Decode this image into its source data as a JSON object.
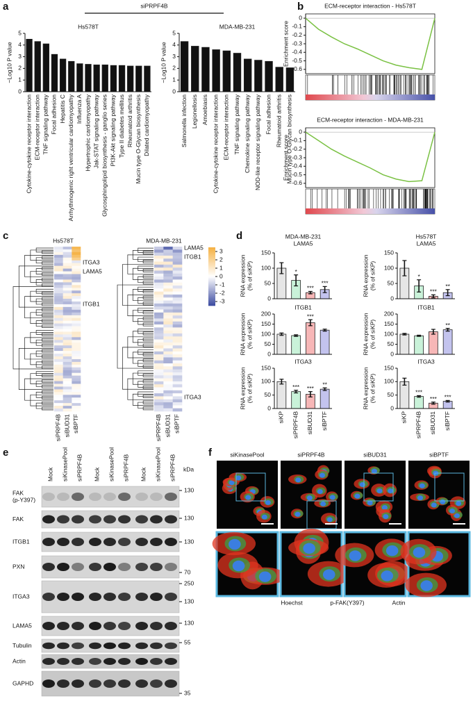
{
  "panel_labels": [
    "a",
    "b",
    "c",
    "d",
    "e",
    "f"
  ],
  "a_header": "siPRPF4B",
  "chart_data": [
    {
      "type": "bar",
      "title": "Hs578T",
      "ylabel": "−Log10 P value",
      "color": "#111111",
      "ylim": [
        0,
        5
      ],
      "yticks": [
        0,
        1,
        2,
        3,
        4,
        5
      ],
      "categories": [
        "Cytokine-cytokine receptor interaction",
        "ECM-receptor interaction",
        "TNF signaling pathway",
        "Focal adhesion",
        "Hepatitis C",
        "Arrhythmogenic right ventricular cardiomyopathy",
        "Influenza A",
        "Hypertrophic cardiomyopathy",
        "Jak-STAT signaling pathway",
        "Glycosphingolipid biosynthesis - ganglio series",
        "PI3K-Akt signaling pathway",
        "Type II diabetes mellitus",
        "Rheumatoid arthritis",
        "Mucin type O-Glycan biosynthesis",
        "Dilated cardiomyopathy"
      ],
      "values": [
        4.5,
        4.3,
        4.1,
        3.2,
        2.8,
        2.6,
        2.4,
        2.35,
        2.3,
        2.3,
        2.25,
        2.25,
        2.2,
        2.2,
        2.2
      ]
    },
    {
      "type": "bar",
      "title": "MDA-MB-231",
      "ylabel": "−Log10 P value",
      "color": "#111111",
      "ylim": [
        0,
        5
      ],
      "yticks": [
        0,
        1,
        2,
        3,
        4,
        5
      ],
      "categories": [
        "Salmonella infection",
        "Legionellosis",
        "Amoebiasis",
        "Cytokine-cytokine receptor interaction",
        "ECM-receptor interaction",
        "TNF signaling pathway",
        "Chemokine signaling pathway",
        "NOD-like receptor signaling pathway",
        "Focal adhesion",
        "Rheumatoid arthritis",
        "Mucin type O-Glycan biosynthesis"
      ],
      "values": [
        4.3,
        3.9,
        3.8,
        3.6,
        3.5,
        3.3,
        2.8,
        2.7,
        2.6,
        2.1,
        2.05
      ]
    },
    {
      "type": "line",
      "title": "ECM-receptor interaction - Hs578T",
      "ylabel": "Enrichment score",
      "color": "#7ac143",
      "xlim": [
        0,
        1
      ],
      "ylim": [
        -0.65,
        0.05
      ],
      "yticks": [
        0,
        -0.1,
        -0.2,
        -0.3,
        -0.4,
        -0.5,
        -0.6
      ],
      "x": [
        0,
        0.1,
        0.2,
        0.3,
        0.4,
        0.5,
        0.6,
        0.7,
        0.8,
        0.9,
        1
      ],
      "values": [
        0,
        -0.13,
        -0.22,
        -0.3,
        -0.36,
        -0.43,
        -0.5,
        -0.55,
        -0.58,
        -0.6,
        0
      ]
    },
    {
      "type": "line",
      "title": "ECM-receptor interaction - MDA-MB-231",
      "ylabel": "Enrichment score",
      "color": "#7ac143",
      "xlim": [
        0,
        1
      ],
      "ylim": [
        -0.65,
        0.05
      ],
      "yticks": [
        0,
        -0.1,
        -0.2,
        -0.3,
        -0.4,
        -0.5,
        -0.6
      ],
      "x": [
        0,
        0.1,
        0.2,
        0.3,
        0.4,
        0.5,
        0.6,
        0.7,
        0.8,
        0.9,
        1
      ],
      "values": [
        0,
        -0.1,
        -0.2,
        -0.28,
        -0.35,
        -0.42,
        -0.5,
        -0.55,
        -0.58,
        -0.57,
        0
      ]
    },
    {
      "type": "bar",
      "title": "MDA-MB-231",
      "subtitle": "LAMA5",
      "ylabel": [
        "RNA expression",
        "(% of siKP)"
      ],
      "colors": [
        "#e6e6e6",
        "#c9f2d9",
        "#f7b7b7",
        "#c3c3ee"
      ],
      "ylim": [
        0,
        150
      ],
      "yticks": [
        0,
        50,
        100,
        150
      ],
      "values": [
        100,
        60,
        20,
        30
      ],
      "errors": [
        18,
        18,
        4,
        10
      ],
      "annotations": [
        null,
        "*",
        "***",
        "***"
      ]
    },
    {
      "type": "bar",
      "title": "Hs578T",
      "subtitle": "LAMA5",
      "ylabel": [
        "RNA expression",
        "(% of siKP)"
      ],
      "colors": [
        "#e6e6e6",
        "#c9f2d9",
        "#f7b7b7",
        "#c3c3ee"
      ],
      "ylim": [
        0,
        150
      ],
      "yticks": [
        0,
        50,
        100,
        150
      ],
      "values": [
        100,
        42,
        8,
        20
      ],
      "errors": [
        25,
        20,
        5,
        10
      ],
      "annotations": [
        null,
        "*",
        "***",
        "**"
      ]
    },
    {
      "type": "bar",
      "title": "ITGB1",
      "ylabel": [
        "RNA expression",
        "(% of siKP)"
      ],
      "colors": [
        "#e6e6e6",
        "#c9f2d9",
        "#f7b7b7",
        "#c3c3ee"
      ],
      "ylim": [
        0,
        200
      ],
      "yticks": [
        0,
        50,
        100,
        150,
        200
      ],
      "values": [
        100,
        93,
        157,
        120
      ],
      "errors": [
        6,
        4,
        15,
        5
      ],
      "annotations": [
        null,
        null,
        "***",
        null
      ]
    },
    {
      "type": "bar",
      "title": "ITGB1",
      "ylabel": [
        "RNA expression",
        "(% of siKP)"
      ],
      "colors": [
        "#e6e6e6",
        "#c9f2d9",
        "#f7b7b7",
        "#c3c3ee"
      ],
      "ylim": [
        0,
        200
      ],
      "yticks": [
        0,
        50,
        100,
        150,
        200
      ],
      "values": [
        100,
        92,
        112,
        122
      ],
      "errors": [
        4,
        3,
        12,
        7
      ],
      "annotations": [
        null,
        null,
        null,
        "**"
      ]
    },
    {
      "type": "bar",
      "title": "ITGA3",
      "ylabel": [
        "RNA expression",
        "(% of siKP)"
      ],
      "colors": [
        "#e6e6e6",
        "#c9f2d9",
        "#f7b7b7",
        "#c3c3ee"
      ],
      "ylim": [
        0,
        150
      ],
      "yticks": [
        0,
        50,
        100,
        150
      ],
      "categories": [
        "siKP",
        "siPRPF4B",
        "siBUD31",
        "siBPTF"
      ],
      "values": [
        100,
        63,
        53,
        72
      ],
      "errors": [
        9,
        5,
        10,
        5
      ],
      "annotations": [
        null,
        "***",
        "***",
        "**"
      ]
    },
    {
      "type": "bar",
      "title": "ITGA3",
      "ylabel": [
        "RNA expression",
        "(% of siKP)"
      ],
      "colors": [
        "#e6e6e6",
        "#c9f2d9",
        "#f7b7b7",
        "#c3c3ee"
      ],
      "ylim": [
        0,
        150
      ],
      "yticks": [
        0,
        50,
        100,
        150
      ],
      "categories": [
        "siKP",
        "siPRPF4B",
        "siBUD31",
        "siBPTF"
      ],
      "values": [
        100,
        45,
        20,
        27
      ],
      "errors": [
        13,
        3,
        4,
        3
      ],
      "annotations": [
        null,
        "***",
        "***",
        "***"
      ]
    }
  ],
  "heatmap": {
    "panels": [
      {
        "title": "Hs578T",
        "genes": [
          "ITGA3",
          "LAMA5",
          "ITGB1"
        ],
        "columns": [
          "siPRPF4B",
          "siBUD31",
          "siBPTF"
        ]
      },
      {
        "title": "MDA-MB-231",
        "genes": [
          "LAMA5",
          "ITGB1",
          "ITGA3"
        ],
        "columns": [
          "siPRPF4B",
          "siBUD31",
          "siBPTF"
        ]
      }
    ],
    "colorbar": {
      "lim": [
        -3.5,
        3.5
      ],
      "ticks": [
        3,
        2,
        1,
        0,
        -1,
        -2,
        -3
      ],
      "colors": [
        "#3b4aa0",
        "#ffffff",
        "#f5b041"
      ]
    }
  },
  "western_blot": {
    "lanes": [
      "Mock",
      "siKinasePool",
      "siPRPF4B",
      "Mock",
      "siKinasePool",
      "siPRPF4B",
      "Mock",
      "siKinasePool",
      "siPRPF4B"
    ],
    "proteins": [
      [
        "FAK",
        "(p-Y397)"
      ],
      [
        "FAK"
      ],
      [
        "ITGB1"
      ],
      [
        "PXN"
      ],
      [
        "ITGA3"
      ],
      [
        "LAMA5"
      ],
      [
        "Tubulin"
      ],
      [
        "Actin"
      ],
      [
        "GAPHD"
      ]
    ],
    "kda_header": "kDa",
    "kda_markers": [
      130,
      130,
      130,
      70,
      250,
      130,
      130,
      55,
      35
    ]
  },
  "microscopy": {
    "conditions": [
      "siKinasePool",
      "siPRPF4B",
      "siBUD31",
      "siBPTF"
    ],
    "channels": [
      {
        "name": "Hoechst",
        "color": "#3b7ee0"
      },
      {
        "name": "p-FAK(Y397)",
        "color": "#2fa84a"
      },
      {
        "name": "Actin",
        "color": "#e0341f"
      }
    ]
  }
}
